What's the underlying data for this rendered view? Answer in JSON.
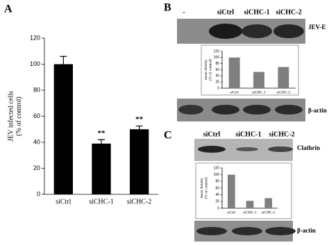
{
  "panels": {
    "a": "A",
    "b": "B",
    "c": "C"
  },
  "blot_b": {
    "lanes": [
      "-",
      "siCtrl",
      "siCHC-1",
      "siCHC-2"
    ],
    "top_label": "JEV-E",
    "bottom_label": "β-actin"
  },
  "blot_c": {
    "lanes": [
      "siCtrl",
      "siCHC-1",
      "siCHC-2"
    ],
    "top_label": "Clathrin",
    "bottom_label": "β-actin"
  },
  "chart_data": [
    {
      "type": "bar",
      "ylabel": [
        "JEV infected cells",
        "(% of control)"
      ],
      "categories": [
        "siCtrl",
        "siCHC-1",
        "siCHC-2"
      ],
      "values": [
        100,
        39,
        50
      ],
      "errors": [
        6,
        3,
        2.5
      ],
      "annotations": [
        null,
        "**",
        "**"
      ],
      "color": "#000000",
      "ylim": [
        0,
        120
      ],
      "yticks": [
        0,
        20,
        40,
        60,
        80,
        100,
        120
      ]
    },
    {
      "type": "bar",
      "ylabel": [
        "mean density",
        "(% of control)"
      ],
      "categories": [
        "siCtrl",
        "siCHC-1",
        "siCHC-2"
      ],
      "values": [
        100,
        53,
        69
      ],
      "color": "#7f7f7f",
      "ylim": [
        0,
        120
      ],
      "yticks": [
        0,
        20,
        40,
        60,
        80,
        100,
        120
      ]
    },
    {
      "type": "bar",
      "ylabel": [
        "mean density",
        "(% of control)"
      ],
      "categories": [
        "siCtrl",
        "siCHC-1",
        "siCHC-2"
      ],
      "values": [
        100,
        22,
        30
      ],
      "color": "#7f7f7f",
      "ylim": [
        0,
        120
      ],
      "yticks": [
        0,
        20,
        40,
        60,
        80,
        100,
        120
      ]
    }
  ]
}
